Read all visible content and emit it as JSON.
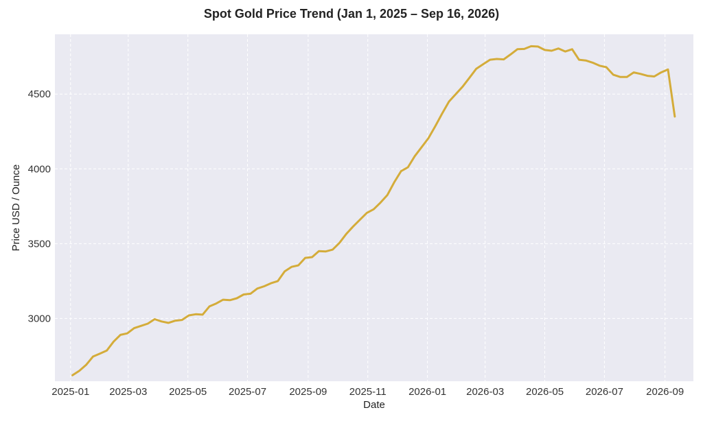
{
  "chart_data": {
    "type": "line",
    "title": "Spot Gold Price Trend (Jan 1, 2025 – Sep 16, 2026)",
    "xlabel": "Date",
    "ylabel": "Price USD / Ounce",
    "x_ticks": [
      "2025-01",
      "2025-03",
      "2025-05",
      "2025-07",
      "2025-09",
      "2025-11",
      "2026-01",
      "2026-03",
      "2026-05",
      "2026-07",
      "2026-09"
    ],
    "y_ticks": [
      3000,
      3500,
      4000,
      4500
    ],
    "ylim": [
      2580,
      4900
    ],
    "xlim": [
      "2024-12-16",
      "2026-09-30"
    ],
    "grid": true,
    "line_color": "#d4ac3a",
    "background_color": "#eaeaf2",
    "series": [
      {
        "x": [
          "2025-01-03",
          "2025-01-10",
          "2025-01-17",
          "2025-01-24",
          "2025-01-31",
          "2025-02-07",
          "2025-02-14",
          "2025-02-21",
          "2025-02-28",
          "2025-03-07",
          "2025-03-14",
          "2025-03-21",
          "2025-03-28",
          "2025-04-04",
          "2025-04-11",
          "2025-04-18",
          "2025-04-25",
          "2025-05-02",
          "2025-05-09",
          "2025-05-16",
          "2025-05-23",
          "2025-05-30",
          "2025-06-06",
          "2025-06-13",
          "2025-06-20",
          "2025-06-27",
          "2025-07-04",
          "2025-07-11",
          "2025-07-18",
          "2025-07-25",
          "2025-08-01",
          "2025-08-08",
          "2025-08-15",
          "2025-08-22",
          "2025-08-29",
          "2025-09-05",
          "2025-09-12",
          "2025-09-19",
          "2025-09-26",
          "2025-10-03",
          "2025-10-10",
          "2025-10-17",
          "2025-10-24",
          "2025-10-31",
          "2025-11-07",
          "2025-11-14",
          "2025-11-21",
          "2025-11-28",
          "2025-12-05",
          "2025-12-12",
          "2025-12-19",
          "2025-12-26",
          "2026-01-02",
          "2026-01-09",
          "2026-01-16",
          "2026-01-23",
          "2026-01-30",
          "2026-02-06",
          "2026-02-13",
          "2026-02-20",
          "2026-02-27",
          "2026-03-06",
          "2026-03-13",
          "2026-03-20",
          "2026-03-27",
          "2026-04-03",
          "2026-04-10",
          "2026-04-17",
          "2026-04-24",
          "2026-05-01",
          "2026-05-08",
          "2026-05-15",
          "2026-05-22",
          "2026-05-29",
          "2026-06-05",
          "2026-06-12",
          "2026-06-19",
          "2026-06-26",
          "2026-07-03",
          "2026-07-10",
          "2026-07-17",
          "2026-07-24",
          "2026-07-31",
          "2026-08-07",
          "2026-08-14",
          "2026-08-21",
          "2026-08-28",
          "2026-09-04",
          "2026-09-11"
        ],
        "y": [
          2620,
          2650,
          2690,
          2745,
          2765,
          2785,
          2845,
          2890,
          2900,
          2935,
          2950,
          2965,
          2995,
          2980,
          2970,
          2985,
          2990,
          3020,
          3028,
          3025,
          3080,
          3100,
          3125,
          3122,
          3135,
          3160,
          3165,
          3200,
          3215,
          3235,
          3250,
          3315,
          3345,
          3355,
          3405,
          3410,
          3450,
          3448,
          3460,
          3505,
          3565,
          3615,
          3660,
          3705,
          3730,
          3775,
          3825,
          3910,
          3985,
          4010,
          4085,
          4145,
          4205,
          4285,
          4370,
          4450,
          4500,
          4550,
          4610,
          4670,
          4700,
          4730,
          4735,
          4732,
          4765,
          4800,
          4802,
          4820,
          4818,
          4795,
          4790,
          4805,
          4785,
          4800,
          4730,
          4725,
          4710,
          4690,
          4680,
          4630,
          4615,
          4615,
          4645,
          4635,
          4622,
          4618,
          4645,
          4665,
          4350
        ]
      }
    ]
  }
}
